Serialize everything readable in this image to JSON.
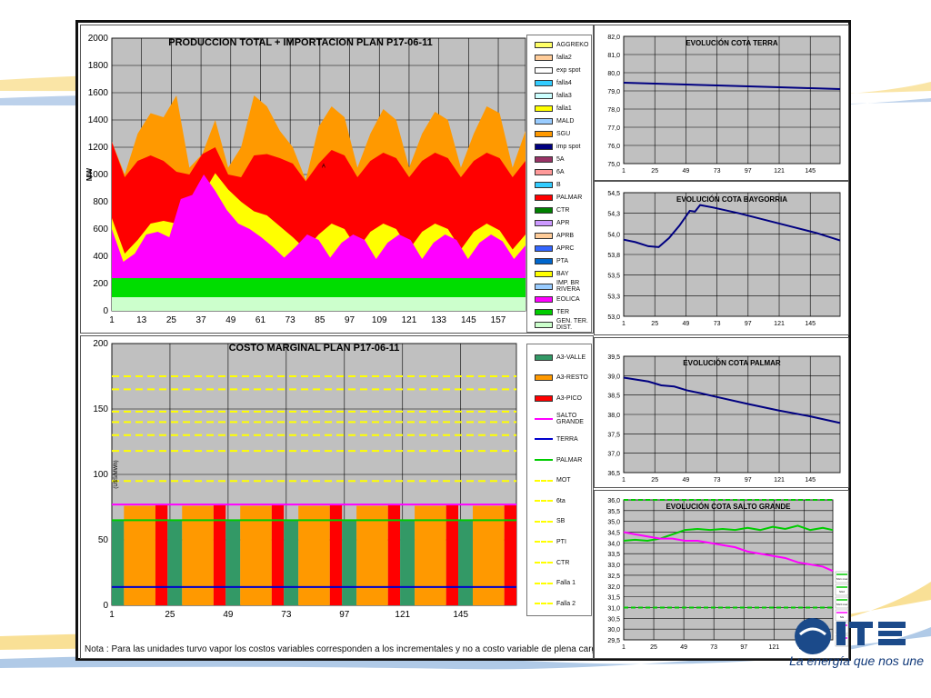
{
  "colors": {
    "bg_chart": "#c0c0c0",
    "navy": "#000080",
    "accent_blue": "#1b4a8a",
    "swoosh_yellow": "#f4c430",
    "swoosh_blue": "#3a6fb0"
  },
  "footer": {
    "note": "Nota : Para las unidades turvo vapor los costos variables corresponden a los incrementales y no a costo variable de plena carga",
    "brand_tagline": "La energía que nos une",
    "logo_icon": "ute-logo-icon"
  },
  "chart_data": [
    {
      "id": "production",
      "type": "area",
      "title": "PRODUCCION TOTAL + IMPORTACION PLAN    P17-06-11",
      "ylabel": "MW",
      "ylim": [
        0,
        2000
      ],
      "yticks": [
        "0",
        "200",
        "400",
        "600",
        "800",
        "1000",
        "1200",
        "1400",
        "1600",
        "1800",
        "2000"
      ],
      "xticks": [
        "1",
        "13",
        "25",
        "37",
        "49",
        "61",
        "73",
        "85",
        "97",
        "109",
        "121",
        "133",
        "145",
        "157"
      ],
      "x_range": [
        1,
        168
      ],
      "annotation": "A",
      "stack": [
        {
          "name": "GEN. TER. DIST.",
          "color": "#ccffcc",
          "values": [
            100,
            100
          ]
        },
        {
          "name": "TER",
          "color": "#00dd00",
          "values": [
            240,
            240
          ]
        },
        {
          "name": "EOLICA",
          "color": "#ff00ff",
          "values": [
            600,
            360,
            420,
            560,
            580,
            540,
            820,
            850,
            1000,
            880,
            740,
            640,
            600,
            540,
            470,
            390,
            470,
            560,
            520,
            390,
            500,
            560,
            520,
            380,
            500,
            560,
            520,
            380,
            500,
            560,
            520,
            380,
            500,
            560,
            510,
            380,
            480
          ]
        },
        {
          "name": "BAY",
          "color": "#ffff00",
          "values": [
            680,
            420,
            520,
            640,
            660,
            640,
            830,
            850,
            1010,
            890,
            800,
            730,
            700,
            620,
            540,
            450,
            560,
            640,
            600,
            450,
            580,
            640,
            600,
            450,
            580,
            640,
            600,
            450,
            580,
            640,
            590,
            450,
            560
          ]
        },
        {
          "name": "PALMAR",
          "color": "#ff0000",
          "values": [
            1240,
            980,
            1100,
            1140,
            1100,
            1020,
            1000,
            1150,
            1200,
            1000,
            980,
            1140,
            1150,
            1120,
            1080,
            950,
            1080,
            1180,
            1140,
            980,
            1100,
            1160,
            1120,
            980,
            1100,
            1160,
            1120,
            980,
            1100,
            1160,
            1120,
            980,
            1100
          ]
        },
        {
          "name": "SGU",
          "color": "#ff9900",
          "values": [
            1240,
            1000,
            1300,
            1450,
            1420,
            1580,
            1050,
            1150,
            1400,
            1050,
            1200,
            1580,
            1500,
            1320,
            1200,
            960,
            1350,
            1500,
            1420,
            1050,
            1300,
            1480,
            1400,
            1050,
            1300,
            1460,
            1400,
            1050,
            1300,
            1500,
            1450,
            1050,
            1320
          ]
        }
      ],
      "legend": [
        "AGGREKO",
        "falla2",
        "exp spot",
        "falla4",
        "falla3",
        "falla1",
        "MALD",
        "SGU",
        "imp spot",
        "5A",
        "6A",
        "B",
        "PALMAR",
        "CTR",
        "APR",
        "APRB",
        "APRC",
        "PTA",
        "BAY",
        "IMP. BR RIVERA",
        "EOLICA",
        "TER",
        "GEN. TER. DIST."
      ],
      "legend_colors": [
        "#ffff66",
        "#ffcc99",
        "#ffffff",
        "#33ccff",
        "#ccffff",
        "#ffff00",
        "#99ccff",
        "#ff9900",
        "#000080",
        "#993366",
        "#ff9999",
        "#33ccff",
        "#ff0000",
        "#008000",
        "#cc99ff",
        "#ffcc99",
        "#3366ff",
        "#0066cc",
        "#ffff00",
        "#99ccff",
        "#ff00ff",
        "#00cc00",
        "#ccffcc"
      ]
    },
    {
      "id": "cota_terra",
      "type": "line",
      "title": "EVOLUCIÓN COTA TERRA",
      "ylim": [
        75.0,
        82.0
      ],
      "yticks": [
        "75,0",
        "76,0",
        "77,0",
        "78,0",
        "79,0",
        "80,0",
        "81,0",
        "82,0"
      ],
      "xticks": [
        "1",
        "25",
        "49",
        "73",
        "97",
        "121",
        "145"
      ],
      "x_range": [
        1,
        168
      ],
      "series": [
        {
          "color": "#000080",
          "x": [
            1,
            25,
            49,
            73,
            97,
            121,
            145,
            168
          ],
          "y": [
            79.45,
            79.4,
            79.35,
            79.3,
            79.25,
            79.2,
            79.15,
            79.1
          ]
        }
      ]
    },
    {
      "id": "cota_baygorria",
      "type": "line",
      "title": "EVOLUCIÓN COTA BAYGORRIA",
      "ylim": [
        53.0,
        54.5
      ],
      "yticks": [
        "53,0",
        "53,3",
        "53,5",
        "53,8",
        "54,0",
        "54,3",
        "54,5"
      ],
      "xticks": [
        "1",
        "25",
        "49",
        "73",
        "97",
        "121",
        "145"
      ],
      "x_range": [
        1,
        168
      ],
      "series": [
        {
          "color": "#000080",
          "x": [
            1,
            10,
            20,
            28,
            36,
            44,
            52,
            56,
            60,
            70,
            90,
            110,
            130,
            150,
            168
          ],
          "y": [
            53.93,
            53.9,
            53.85,
            53.84,
            53.95,
            54.1,
            54.28,
            54.27,
            54.35,
            54.32,
            54.25,
            54.17,
            54.09,
            54.01,
            53.92
          ]
        }
      ]
    },
    {
      "id": "cota_palmar",
      "type": "line",
      "title": "EVOLUCIÓN COTA PALMAR",
      "ylim": [
        36.5,
        39.5
      ],
      "yticks": [
        "36,5",
        "37,0",
        "37,5",
        "38,0",
        "38,5",
        "39,0",
        "39,5"
      ],
      "xticks": [
        "1",
        "25",
        "49",
        "73",
        "97",
        "121",
        "145"
      ],
      "x_range": [
        1,
        168
      ],
      "series": [
        {
          "color": "#000080",
          "x": [
            1,
            20,
            30,
            40,
            50,
            60,
            73,
            97,
            121,
            145,
            168
          ],
          "y": [
            38.95,
            38.85,
            38.75,
            38.72,
            38.62,
            38.55,
            38.45,
            38.27,
            38.1,
            37.95,
            37.78
          ]
        }
      ]
    },
    {
      "id": "cota_salto_grande",
      "type": "line",
      "title": "EVOLUCIÓN COTA SALTO GRANDE",
      "ylim": [
        29.5,
        36.0
      ],
      "yticks": [
        "29,5",
        "30,0",
        "30,5",
        "31,0",
        "31,5",
        "32,0",
        "32,5",
        "33,0",
        "33,5",
        "34,0",
        "34,5",
        "35,0",
        "35,5",
        "36,0"
      ],
      "xticks": [
        "1",
        "25",
        "49",
        "73",
        "97",
        "121",
        "145"
      ],
      "x_range": [
        1,
        168
      ],
      "legend": [
        "SG1 max",
        "SG2",
        "SG3 max",
        "SG",
        "SG",
        "SG"
      ],
      "legend_colors": [
        "#00cc00",
        "#00cc00",
        "#00cc00",
        "#ff00ff",
        "#ff00ff",
        "#ff00ff"
      ],
      "series": [
        {
          "color": "#00cc00",
          "style": "solid",
          "x": [
            1,
            10,
            20,
            30,
            40,
            50,
            60,
            70,
            80,
            90,
            100,
            110,
            120,
            130,
            140,
            150,
            160,
            168
          ],
          "y": [
            34.1,
            34.15,
            34.1,
            34.2,
            34.4,
            34.6,
            34.65,
            34.6,
            34.65,
            34.6,
            34.7,
            34.6,
            34.75,
            34.65,
            34.8,
            34.6,
            34.7,
            34.6
          ]
        },
        {
          "color": "#ff00ff",
          "style": "solid",
          "x": [
            1,
            10,
            20,
            30,
            40,
            50,
            60,
            70,
            80,
            90,
            100,
            110,
            120,
            130,
            140,
            150,
            160,
            168
          ],
          "y": [
            34.5,
            34.4,
            34.3,
            34.2,
            34.2,
            34.1,
            34.1,
            34.0,
            33.9,
            33.8,
            33.6,
            33.5,
            33.4,
            33.3,
            33.1,
            33.0,
            32.9,
            32.7
          ]
        },
        {
          "color": "#00cc00",
          "style": "dashed",
          "x": [
            1,
            168
          ],
          "y": [
            36.0,
            36.0
          ]
        },
        {
          "color": "#00cc00",
          "style": "dashed",
          "x": [
            1,
            168
          ],
          "y": [
            31.0,
            31.0
          ]
        }
      ]
    },
    {
      "id": "costo_marginal",
      "type": "bar",
      "title": "COSTO MARGINAL PLAN    P17-06-11",
      "ylabel": "(U$S/MWh)",
      "ylim": [
        0,
        200
      ],
      "yticks": [
        "0",
        "50",
        "100",
        "150",
        "200"
      ],
      "xticks": [
        "1",
        "25",
        "49",
        "73",
        "97",
        "121",
        "145"
      ],
      "x_range": [
        1,
        168
      ],
      "levels": {
        "A3-VALLE": 65,
        "A3-RESTO": 76,
        "A3-PICO": 77
      },
      "bars": [
        {
          "x0": 1,
          "x1": 6,
          "value": 65,
          "name": "A3-VALLE"
        },
        {
          "x0": 6,
          "x1": 19,
          "value": 76,
          "name": "A3-RESTO"
        },
        {
          "x0": 19,
          "x1": 24,
          "value": 77,
          "name": "A3-PICO"
        },
        {
          "x0": 24,
          "x1": 30,
          "value": 65,
          "name": "A3-VALLE"
        },
        {
          "x0": 30,
          "x1": 43,
          "value": 76,
          "name": "A3-RESTO"
        },
        {
          "x0": 43,
          "x1": 48,
          "value": 77,
          "name": "A3-PICO"
        },
        {
          "x0": 48,
          "x1": 54,
          "value": 65,
          "name": "A3-VALLE"
        },
        {
          "x0": 54,
          "x1": 67,
          "value": 76,
          "name": "A3-RESTO"
        },
        {
          "x0": 67,
          "x1": 72,
          "value": 77,
          "name": "A3-PICO"
        },
        {
          "x0": 72,
          "x1": 78,
          "value": 65,
          "name": "A3-VALLE"
        },
        {
          "x0": 78,
          "x1": 91,
          "value": 76,
          "name": "A3-RESTO"
        },
        {
          "x0": 91,
          "x1": 96,
          "value": 77,
          "name": "A3-PICO"
        },
        {
          "x0": 96,
          "x1": 102,
          "value": 65,
          "name": "A3-VALLE"
        },
        {
          "x0": 102,
          "x1": 115,
          "value": 76,
          "name": "A3-RESTO"
        },
        {
          "x0": 115,
          "x1": 120,
          "value": 77,
          "name": "A3-PICO"
        },
        {
          "x0": 120,
          "x1": 126,
          "value": 65,
          "name": "A3-VALLE"
        },
        {
          "x0": 126,
          "x1": 139,
          "value": 76,
          "name": "A3-RESTO"
        },
        {
          "x0": 139,
          "x1": 144,
          "value": 77,
          "name": "A3-PICO"
        },
        {
          "x0": 144,
          "x1": 150,
          "value": 65,
          "name": "A3-VALLE"
        },
        {
          "x0": 150,
          "x1": 163,
          "value": 76,
          "name": "A3-RESTO"
        },
        {
          "x0": 163,
          "x1": 168,
          "value": 77,
          "name": "A3-PICO"
        }
      ],
      "lines": [
        {
          "name": "SALTO GRANDE",
          "value": 77,
          "color": "#ff00ff",
          "style": "solid"
        },
        {
          "name": "PALMAR",
          "value": 65,
          "color": "#00cc00",
          "style": "solid"
        },
        {
          "name": "TERRA",
          "value": 14,
          "color": "#0000cc",
          "style": "solid"
        },
        {
          "name": "MOT",
          "value": 175,
          "color": "#ffff00",
          "style": "dashed"
        },
        {
          "name": "6ta",
          "value": 165,
          "color": "#ffff00",
          "style": "dashed"
        },
        {
          "name": "SB",
          "value": 148,
          "color": "#ffff00",
          "style": "dashed"
        },
        {
          "name": "PTI",
          "value": 140,
          "color": "#ffff00",
          "style": "dashed"
        },
        {
          "name": "CTR",
          "value": 130,
          "color": "#ffff00",
          "style": "dashed"
        },
        {
          "name": "Falla 1",
          "value": 118,
          "color": "#ffff00",
          "style": "dashed"
        },
        {
          "name": "Falla 2",
          "value": 95,
          "color": "#ffff00",
          "style": "dashed"
        }
      ],
      "legend": [
        "A3-VALLE",
        "A3-RESTO",
        "A3-PICO",
        "SALTO GRANDE",
        "TERRA",
        "PALMAR",
        "MOT",
        "6ta",
        "SB",
        "PTI",
        "CTR",
        "Falla 1",
        "Falla 2"
      ],
      "legend_colors": [
        "#339966",
        "#ff9900",
        "#ff0000",
        "#ff00ff",
        "#0000cc",
        "#00cc00",
        "#ffff00",
        "#ffff00",
        "#ffff00",
        "#ffff00",
        "#ffff00",
        "#ffff00",
        "#ffff00"
      ],
      "legend_styles": [
        "box",
        "box",
        "box",
        "line",
        "line",
        "line",
        "dash",
        "dash",
        "dash",
        "dash",
        "dash",
        "dash",
        "dash"
      ]
    }
  ]
}
